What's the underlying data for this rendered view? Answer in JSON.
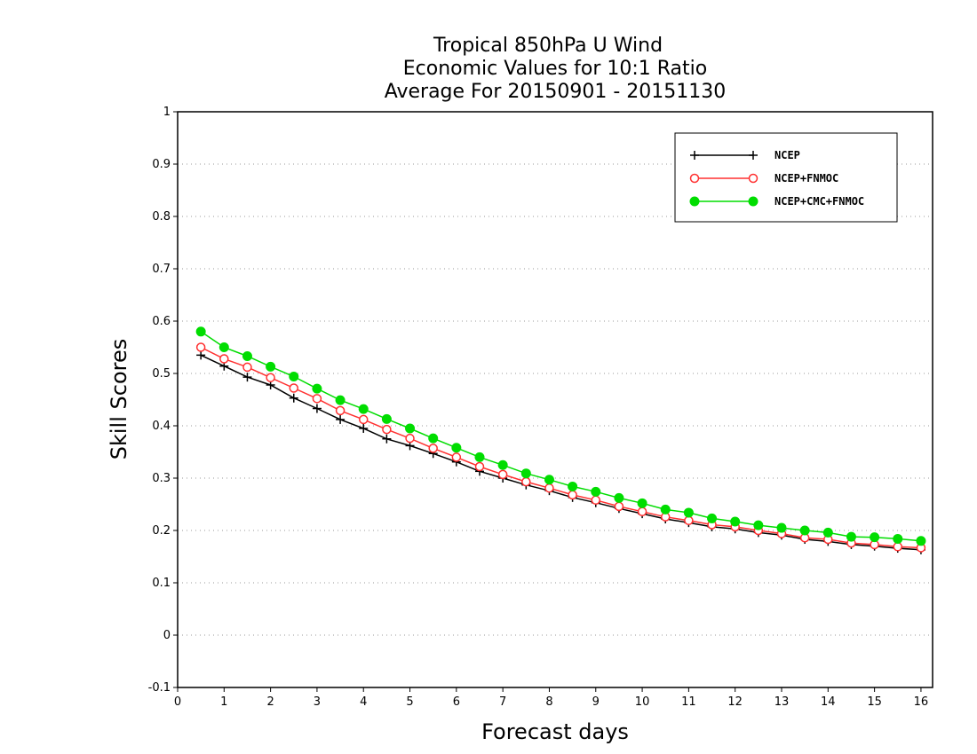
{
  "chart_data": {
    "type": "line",
    "title": [
      "Tropical 850hPa U Wind",
      "Economic Values for 10:1 Ratio",
      "Average For 20150901 - 20151130"
    ],
    "xlabel": "Forecast days",
    "ylabel": "Skill Scores",
    "xlim": [
      0,
      16.25
    ],
    "ylim": [
      -0.1,
      1
    ],
    "xticks": [
      0,
      1,
      2,
      3,
      4,
      5,
      6,
      7,
      8,
      9,
      10,
      11,
      12,
      13,
      14,
      15,
      16
    ],
    "xtick_labels": [
      "0",
      "1",
      "2",
      "3",
      "4",
      "5",
      "6",
      "7",
      "8",
      "9",
      "10",
      "11",
      "12",
      "13",
      "14",
      "15",
      "16"
    ],
    "yticks": [
      -0.1,
      0,
      0.1,
      0.2,
      0.3,
      0.4,
      0.5,
      0.6,
      0.7,
      0.8,
      0.9,
      1
    ],
    "ytick_labels": [
      "-0.1",
      "0",
      "0.1",
      "0.2",
      "0.3",
      "0.4",
      "0.5",
      "0.6",
      "0.7",
      "0.8",
      "0.9",
      "1"
    ],
    "grid": true,
    "legend_position": "top-right",
    "x": [
      0.5,
      1,
      1.5,
      2,
      2.5,
      3,
      3.5,
      4,
      4.5,
      5,
      5.5,
      6,
      6.5,
      7,
      7.5,
      8,
      8.5,
      9,
      9.5,
      10,
      10.5,
      11,
      11.5,
      12,
      12.5,
      13,
      13.5,
      14,
      14.5,
      15,
      15.5,
      16
    ],
    "series": [
      {
        "name": "NCEP",
        "color": "#000000",
        "marker": "plus",
        "values": [
          0.535,
          0.514,
          0.493,
          0.478,
          0.453,
          0.433,
          0.412,
          0.395,
          0.375,
          0.362,
          0.347,
          0.331,
          0.313,
          0.3,
          0.287,
          0.276,
          0.263,
          0.253,
          0.242,
          0.232,
          0.222,
          0.215,
          0.207,
          0.203,
          0.196,
          0.191,
          0.183,
          0.179,
          0.173,
          0.17,
          0.166,
          0.163
        ]
      },
      {
        "name": "NCEP+FNMOC",
        "color": "#ff3030",
        "marker": "open-circle",
        "values": [
          0.55,
          0.528,
          0.512,
          0.492,
          0.472,
          0.452,
          0.429,
          0.412,
          0.393,
          0.376,
          0.357,
          0.34,
          0.322,
          0.307,
          0.293,
          0.281,
          0.268,
          0.258,
          0.246,
          0.236,
          0.226,
          0.219,
          0.211,
          0.207,
          0.2,
          0.194,
          0.186,
          0.183,
          0.176,
          0.173,
          0.169,
          0.167
        ]
      },
      {
        "name": "NCEP+CMC+FNMOC",
        "color": "#00dd00",
        "marker": "filled-circle",
        "values": [
          0.58,
          0.55,
          0.533,
          0.513,
          0.494,
          0.471,
          0.449,
          0.432,
          0.413,
          0.395,
          0.376,
          0.358,
          0.34,
          0.325,
          0.309,
          0.297,
          0.284,
          0.274,
          0.262,
          0.252,
          0.24,
          0.234,
          0.223,
          0.217,
          0.21,
          0.205,
          0.2,
          0.196,
          0.188,
          0.187,
          0.184,
          0.18
        ]
      }
    ]
  }
}
